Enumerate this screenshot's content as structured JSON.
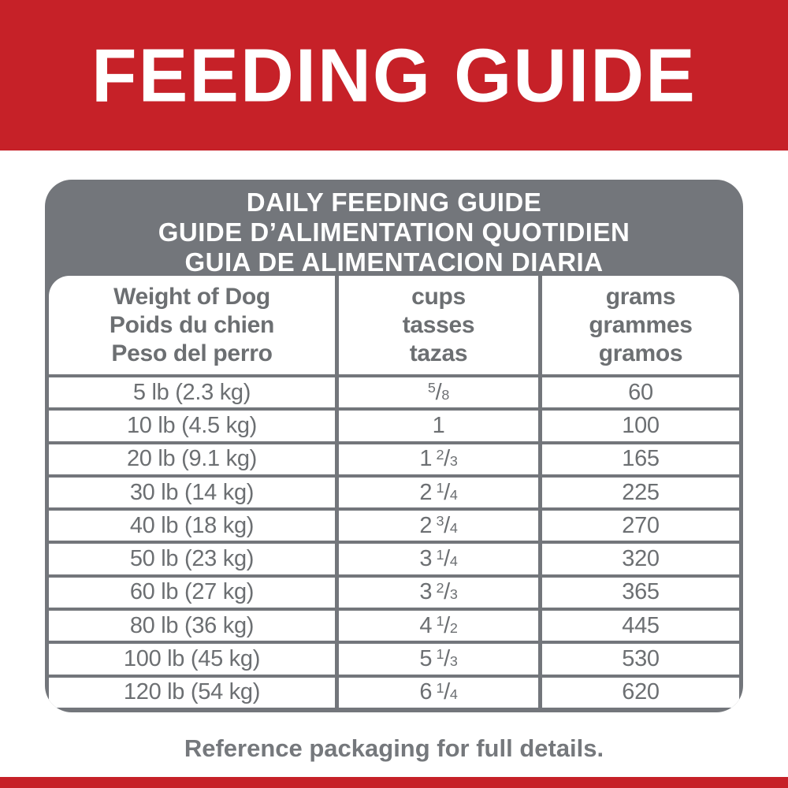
{
  "colors": {
    "red": "#C62128",
    "gray": "#73767B",
    "cell_text": "#6C6F72",
    "footer_text": "#75787C"
  },
  "banner": {
    "title": "FEEDING GUIDE"
  },
  "card": {
    "title_lines": [
      "DAILY FEEDING GUIDE",
      "GUIDE D’ALIMENTATION QUOTIDIEN",
      "GUIA DE ALIMENTACION DIARIA"
    ],
    "columns": [
      {
        "id": "weight",
        "lines": [
          "Weight of Dog",
          "Poids du chien",
          "Peso del perro"
        ]
      },
      {
        "id": "cups",
        "lines": [
          "cups",
          "tasses",
          "tazas"
        ]
      },
      {
        "id": "grams",
        "lines": [
          "grams",
          "grammes",
          "gramos"
        ]
      }
    ],
    "rows": [
      {
        "weight": "5 lb (2.3 kg)",
        "cups": {
          "whole": "",
          "num": "5",
          "den": "8"
        },
        "grams": "60"
      },
      {
        "weight": "10 lb (4.5 kg)",
        "cups": {
          "whole": "1",
          "num": "",
          "den": ""
        },
        "grams": "100"
      },
      {
        "weight": "20 lb (9.1 kg)",
        "cups": {
          "whole": "1",
          "num": "2",
          "den": "3"
        },
        "grams": "165"
      },
      {
        "weight": "30 lb (14 kg)",
        "cups": {
          "whole": "2",
          "num": "1",
          "den": "4"
        },
        "grams": "225"
      },
      {
        "weight": "40 lb (18 kg)",
        "cups": {
          "whole": "2",
          "num": "3",
          "den": "4"
        },
        "grams": "270"
      },
      {
        "weight": "50 lb (23 kg)",
        "cups": {
          "whole": "3",
          "num": "1",
          "den": "4"
        },
        "grams": "320"
      },
      {
        "weight": "60 lb (27 kg)",
        "cups": {
          "whole": "3",
          "num": "2",
          "den": "3"
        },
        "grams": "365"
      },
      {
        "weight": "80 lb (36 kg)",
        "cups": {
          "whole": "4",
          "num": "1",
          "den": "2"
        },
        "grams": "445"
      },
      {
        "weight": "100 lb (45 kg)",
        "cups": {
          "whole": "5",
          "num": "1",
          "den": "3"
        },
        "grams": "530"
      },
      {
        "weight": "120 lb (54 kg)",
        "cups": {
          "whole": "6",
          "num": "1",
          "den": "4"
        },
        "grams": "620"
      }
    ]
  },
  "footer": {
    "note": "Reference packaging for full details."
  }
}
